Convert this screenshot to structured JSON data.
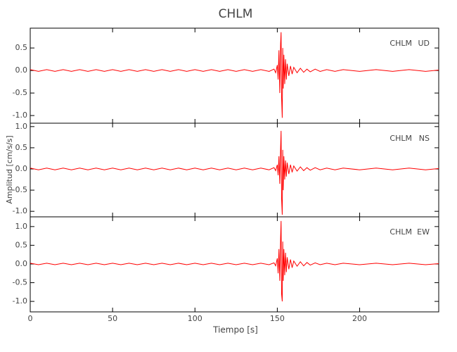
{
  "chart_data": [
    {
      "type": "line",
      "title": "CHLM",
      "station": "CHLM",
      "component": "UD",
      "color": "#ff0000",
      "xlim": [
        0,
        248
      ],
      "xticks": [
        0,
        50,
        100,
        150,
        200
      ],
      "ylim": [
        -1.17,
        0.94
      ],
      "yticks": [
        {
          "value": 0.5,
          "label": "0.5"
        },
        {
          "value": 0,
          "label": "0.0"
        },
        -0.5,
        {
          "value": -1,
          "label": "-1.0"
        }
      ],
      "x": [
        0,
        5,
        10,
        15,
        20,
        25,
        30,
        35,
        40,
        45,
        50,
        55,
        60,
        65,
        70,
        75,
        80,
        85,
        90,
        95,
        100,
        105,
        110,
        115,
        120,
        125,
        130,
        135,
        140,
        145,
        148,
        149,
        150,
        150.5,
        151,
        151.5,
        152,
        152.3,
        152.6,
        153,
        153.3,
        153.6,
        154,
        154.5,
        155,
        155.5,
        156,
        157,
        158,
        159,
        160,
        162,
        164,
        166,
        168,
        170,
        173,
        176,
        180,
        185,
        190,
        200,
        210,
        220,
        230,
        240,
        248
      ],
      "values": [
        0.02,
        -0.02,
        0.02,
        -0.02,
        0.02,
        -0.02,
        0.02,
        -0.02,
        0.02,
        -0.02,
        0.02,
        -0.02,
        0.02,
        -0.02,
        0.02,
        -0.02,
        0.02,
        -0.02,
        0.02,
        -0.02,
        0.02,
        -0.02,
        0.02,
        -0.02,
        0.02,
        -0.02,
        0.02,
        -0.02,
        0.02,
        -0.02,
        0.03,
        -0.05,
        0.12,
        -0.2,
        0.45,
        -0.5,
        0.6,
        0.85,
        -0.6,
        -1.05,
        0.5,
        -0.4,
        0.35,
        -0.3,
        0.25,
        -0.2,
        0.15,
        -0.12,
        0.1,
        -0.08,
        0.07,
        -0.05,
        0.05,
        -0.04,
        0.03,
        -0.03,
        0.03,
        -0.02,
        0.02,
        -0.02,
        0.02,
        -0.02,
        0.02,
        -0.02,
        0.02,
        -0.02,
        0.01
      ]
    },
    {
      "type": "line",
      "ylabel": "Amplitud [cm/s/s]",
      "station": "CHLM",
      "component": "NS",
      "color": "#ff0000",
      "xlim": [
        0,
        248
      ],
      "xticks": [
        0,
        50,
        100,
        150,
        200
      ],
      "ylim": [
        -1.13,
        1.08
      ],
      "yticks": [
        {
          "value": 1,
          "label": "1.0"
        },
        0.5,
        {
          "value": 0,
          "label": "0.0"
        },
        -0.5,
        {
          "value": -1,
          "label": "-1.0"
        }
      ],
      "x": [
        0,
        5,
        10,
        15,
        20,
        25,
        30,
        35,
        40,
        45,
        50,
        55,
        60,
        65,
        70,
        75,
        80,
        85,
        90,
        95,
        100,
        105,
        110,
        115,
        120,
        125,
        130,
        135,
        140,
        145,
        148,
        149,
        150,
        150.5,
        151,
        151.5,
        152,
        152.3,
        152.6,
        153,
        153.3,
        153.6,
        154,
        154.5,
        155,
        155.5,
        156,
        157,
        158,
        159,
        160,
        162,
        164,
        166,
        168,
        170,
        173,
        176,
        180,
        185,
        190,
        200,
        210,
        220,
        230,
        240,
        248
      ],
      "values": [
        0.02,
        -0.02,
        0.02,
        -0.02,
        0.02,
        -0.02,
        0.02,
        -0.02,
        0.02,
        -0.02,
        0.02,
        -0.02,
        0.02,
        -0.02,
        0.02,
        -0.02,
        0.02,
        -0.02,
        0.02,
        -0.02,
        0.02,
        -0.02,
        0.02,
        -0.02,
        0.02,
        -0.02,
        0.02,
        -0.02,
        0.02,
        -0.02,
        0.03,
        -0.04,
        0.1,
        -0.15,
        0.3,
        -0.35,
        0.5,
        0.9,
        -0.7,
        -1.08,
        0.45,
        -0.5,
        0.3,
        -0.25,
        0.2,
        -0.18,
        0.15,
        -0.12,
        0.1,
        -0.08,
        0.07,
        -0.05,
        0.05,
        -0.04,
        0.03,
        -0.03,
        0.03,
        -0.02,
        0.02,
        -0.02,
        0.02,
        -0.02,
        0.02,
        -0.02,
        0.02,
        -0.02,
        0.01
      ]
    },
    {
      "type": "line",
      "xlabel": "Tiempo [s]",
      "station": "CHLM",
      "component": "EW",
      "color": "#ff0000",
      "xlim": [
        0,
        248
      ],
      "xticks": [
        0,
        50,
        100,
        150,
        200
      ],
      "ylim": [
        -1.28,
        1.26
      ],
      "yticks": [
        {
          "value": 1,
          "label": "1.0"
        },
        0.5,
        {
          "value": 0,
          "label": "0.0"
        },
        -0.5,
        {
          "value": -1,
          "label": "-1.0"
        }
      ],
      "x": [
        0,
        5,
        10,
        15,
        20,
        25,
        30,
        35,
        40,
        45,
        50,
        55,
        60,
        65,
        70,
        75,
        80,
        85,
        90,
        95,
        100,
        105,
        110,
        115,
        120,
        125,
        130,
        135,
        140,
        145,
        148,
        149,
        150,
        150.5,
        151,
        151.5,
        152,
        152.3,
        152.6,
        153,
        153.3,
        153.6,
        154,
        154.5,
        155,
        155.5,
        156,
        157,
        158,
        159,
        160,
        162,
        164,
        166,
        168,
        170,
        173,
        176,
        180,
        185,
        190,
        200,
        210,
        220,
        230,
        240,
        248
      ],
      "values": [
        0.02,
        -0.02,
        0.02,
        -0.02,
        0.02,
        -0.02,
        0.02,
        -0.02,
        0.02,
        -0.02,
        0.02,
        -0.02,
        0.02,
        -0.02,
        0.02,
        -0.02,
        0.02,
        -0.02,
        0.02,
        -0.02,
        0.02,
        -0.02,
        0.02,
        -0.02,
        0.02,
        -0.02,
        0.02,
        -0.02,
        0.02,
        -0.02,
        0.03,
        -0.05,
        0.15,
        -0.25,
        0.4,
        -0.45,
        0.7,
        1.15,
        -0.8,
        -1.0,
        0.6,
        -0.45,
        0.4,
        -0.3,
        0.3,
        -0.22,
        0.18,
        -0.14,
        0.12,
        -0.1,
        0.08,
        -0.06,
        0.06,
        -0.05,
        0.04,
        -0.03,
        0.03,
        -0.02,
        0.02,
        -0.02,
        0.02,
        -0.02,
        0.02,
        -0.02,
        0.02,
        -0.02,
        0.01
      ]
    }
  ]
}
